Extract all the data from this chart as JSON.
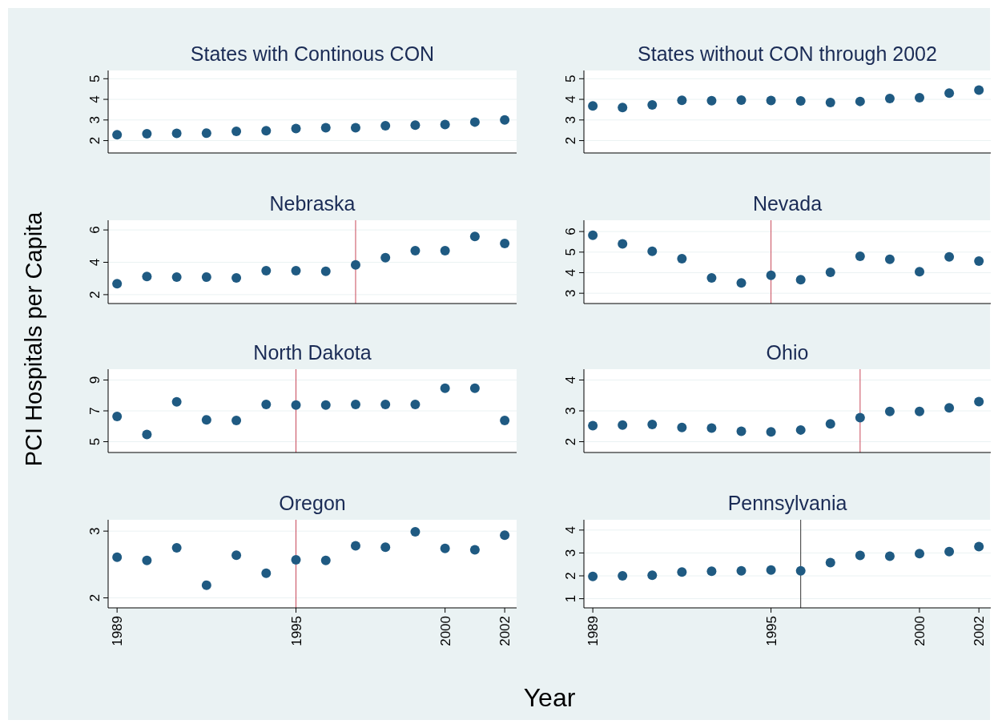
{
  "chart_data": [
    {
      "type": "scatter",
      "title": "States with Continous CON",
      "ylabel": "PCI Hospitals per Capita",
      "x": [
        1989,
        1990,
        1991,
        1992,
        1993,
        1994,
        1995,
        1996,
        1997,
        1998,
        1999,
        2000,
        2001,
        2002
      ],
      "series": [
        {
          "color": "#1f5a82",
          "values": [
            2.28,
            2.33,
            2.35,
            2.36,
            2.45,
            2.48,
            2.58,
            2.62,
            2.62,
            2.72,
            2.75,
            2.78,
            2.9,
            3.0
          ]
        }
      ],
      "xlim": [
        1988.7,
        2002.4
      ],
      "ylim": [
        1.4,
        5.4
      ],
      "yticks": [
        2,
        3,
        4,
        5
      ],
      "grid": "y",
      "marker": "circle",
      "tick_labels": "y"
    },
    {
      "type": "scatter",
      "title": "States without CON through 2002",
      "x": [
        1989,
        1990,
        1991,
        1992,
        1993,
        1994,
        1995,
        1996,
        1997,
        1998,
        1999,
        2000,
        2001,
        2002
      ],
      "series": [
        {
          "color": "#1f5a82",
          "values": [
            3.68,
            3.6,
            3.73,
            3.95,
            3.93,
            3.96,
            3.94,
            3.92,
            3.85,
            3.9,
            4.04,
            4.08,
            4.3,
            4.45
          ]
        }
      ],
      "xlim": [
        1988.7,
        2002.4
      ],
      "ylim": [
        1.4,
        5.4
      ],
      "yticks": [
        2,
        3,
        4,
        5
      ],
      "grid": "y",
      "marker": "circle",
      "tick_labels": "y"
    },
    {
      "type": "scatter",
      "title": "Nebraska",
      "x": [
        1989,
        1990,
        1991,
        1992,
        1993,
        1994,
        1995,
        1996,
        1997,
        1998,
        1999,
        2000,
        2001,
        2002
      ],
      "series": [
        {
          "color": "#1f5a82",
          "values": [
            2.68,
            3.12,
            3.08,
            3.08,
            3.04,
            3.48,
            3.48,
            3.44,
            3.84,
            4.28,
            4.72,
            4.72,
            5.6,
            5.16
          ]
        }
      ],
      "xlim": [
        1988.7,
        2002.4
      ],
      "ylim": [
        1.45,
        6.6
      ],
      "yticks": [
        2,
        4,
        6
      ],
      "grid": "y",
      "marker": "circle",
      "tick_labels": "y",
      "ref_lines": [
        {
          "axis": "x",
          "value": 1997,
          "color": "#c8485a"
        }
      ]
    },
    {
      "type": "scatter",
      "title": "Nevada",
      "x": [
        1989,
        1990,
        1991,
        1992,
        1993,
        1994,
        1995,
        1996,
        1997,
        1998,
        1999,
        2000,
        2001,
        2002
      ],
      "series": [
        {
          "color": "#1f5a82",
          "values": [
            5.82,
            5.4,
            5.04,
            4.68,
            3.75,
            3.5,
            3.87,
            3.66,
            4.02,
            4.8,
            4.65,
            4.05,
            4.77,
            4.56
          ]
        }
      ],
      "xlim": [
        1988.7,
        2002.4
      ],
      "ylim": [
        2.5,
        6.55
      ],
      "yticks": [
        3,
        4,
        5,
        6
      ],
      "grid": "y",
      "marker": "circle",
      "tick_labels": "y",
      "ref_lines": [
        {
          "axis": "x",
          "value": 1995,
          "color": "#c8485a"
        }
      ]
    },
    {
      "type": "scatter",
      "title": "North Dakota",
      "x": [
        1989,
        1990,
        1991,
        1992,
        1993,
        1994,
        1995,
        1996,
        1997,
        1998,
        1999,
        2000,
        2001,
        2002
      ],
      "series": [
        {
          "color": "#1f5a82",
          "values": [
            6.64,
            5.47,
            7.59,
            6.42,
            6.38,
            7.42,
            7.38,
            7.38,
            7.42,
            7.42,
            7.42,
            8.47,
            8.47,
            6.38
          ]
        }
      ],
      "xlim": [
        1988.7,
        2002.4
      ],
      "ylim": [
        4.3,
        9.7
      ],
      "yticks": [
        5,
        7,
        9
      ],
      "grid": "y",
      "marker": "circle",
      "tick_labels": "y",
      "ref_lines": [
        {
          "axis": "x",
          "value": 1995,
          "color": "#c8485a"
        }
      ]
    },
    {
      "type": "scatter",
      "title": "Ohio",
      "x": [
        1989,
        1990,
        1991,
        1992,
        1993,
        1994,
        1995,
        1996,
        1997,
        1998,
        1999,
        2000,
        2001,
        2002
      ],
      "series": [
        {
          "color": "#1f5a82",
          "values": [
            2.52,
            2.54,
            2.56,
            2.46,
            2.44,
            2.34,
            2.32,
            2.38,
            2.58,
            2.78,
            2.98,
            2.98,
            3.1,
            3.3
          ]
        }
      ],
      "xlim": [
        1988.7,
        2002.4
      ],
      "ylim": [
        1.65,
        4.35
      ],
      "yticks": [
        2,
        3,
        4
      ],
      "grid": "y",
      "marker": "circle",
      "tick_labels": "y",
      "ref_lines": [
        {
          "axis": "x",
          "value": 1998,
          "color": "#c8485a"
        }
      ]
    },
    {
      "type": "scatter",
      "title": "Oregon",
      "xlabel": "Year",
      "x": [
        1989,
        1990,
        1991,
        1992,
        1993,
        1994,
        1995,
        1996,
        1997,
        1998,
        1999,
        2000,
        2001,
        2002
      ],
      "series": [
        {
          "color": "#1f5a82",
          "values": [
            2.61,
            2.56,
            2.75,
            2.19,
            2.64,
            2.37,
            2.57,
            2.56,
            2.78,
            2.76,
            2.99,
            2.74,
            2.72,
            2.94
          ]
        }
      ],
      "xlim": [
        1988.7,
        2002.4
      ],
      "xticks": [
        1989,
        1995,
        2000,
        2002
      ],
      "ylim": [
        1.85,
        3.17
      ],
      "yticks": [
        2,
        3
      ],
      "grid": "y",
      "marker": "circle",
      "ref_lines": [
        {
          "axis": "x",
          "value": 1995,
          "color": "#c8485a"
        }
      ]
    },
    {
      "type": "scatter",
      "title": "Pennsylvania",
      "x": [
        1989,
        1990,
        1991,
        1992,
        1993,
        1994,
        1995,
        1996,
        1997,
        1998,
        1999,
        2000,
        2001,
        2002
      ],
      "series": [
        {
          "color": "#1f5a82",
          "values": [
            1.97,
            2.0,
            2.03,
            2.17,
            2.2,
            2.22,
            2.25,
            2.22,
            2.58,
            2.89,
            2.86,
            2.97,
            3.06,
            3.28
          ]
        }
      ],
      "xlim": [
        1988.7,
        2002.4
      ],
      "xticks": [
        1989,
        1995,
        2000,
        2002
      ],
      "ylim": [
        0.6,
        4.45
      ],
      "yticks": [
        1,
        2,
        3,
        4
      ],
      "grid": "y",
      "marker": "circle",
      "ref_lines": [
        {
          "axis": "x",
          "value": 1996,
          "color": "#333333"
        }
      ]
    }
  ]
}
